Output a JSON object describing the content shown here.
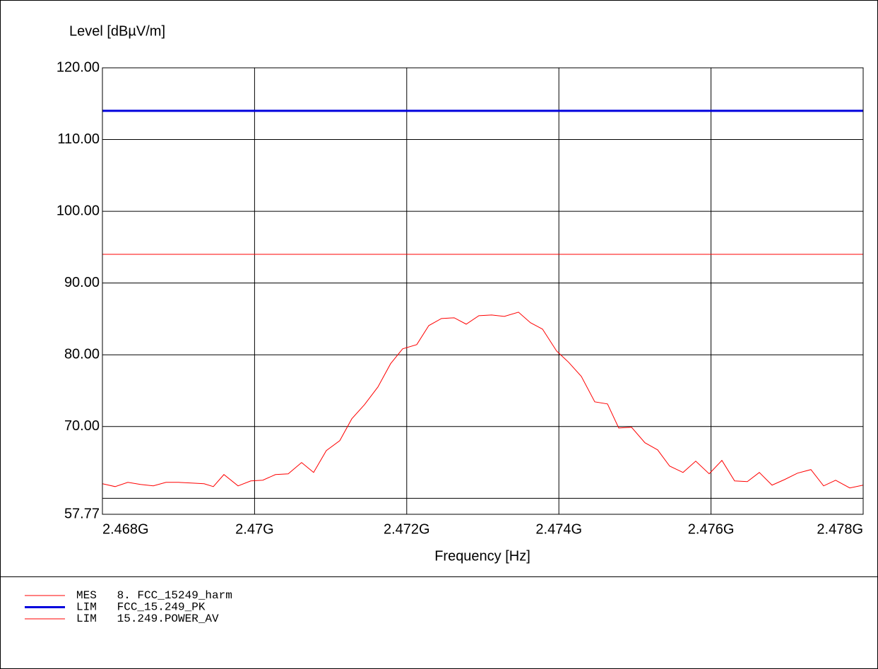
{
  "chart_data": {
    "type": "line",
    "ylabel": "Level [dBµV/m]",
    "xlabel": "Frequency [Hz]",
    "xlim": [
      2468000000,
      2478000000
    ],
    "ylim": [
      57.77,
      120
    ],
    "xticks": [
      {
        "value": 2468000000,
        "label": "2.468G"
      },
      {
        "value": 2470000000,
        "label": "2.47G"
      },
      {
        "value": 2472000000,
        "label": "2.472G"
      },
      {
        "value": 2474000000,
        "label": "2.474G"
      },
      {
        "value": 2476000000,
        "label": "2.476G"
      },
      {
        "value": 2478000000,
        "label": "2.478G"
      }
    ],
    "yticks": [
      {
        "value": 57.77,
        "label": "57.77"
      },
      {
        "value": 70,
        "label": "70.00"
      },
      {
        "value": 80,
        "label": "80.00"
      },
      {
        "value": 90,
        "label": "90.00"
      },
      {
        "value": 100,
        "label": "100.00"
      },
      {
        "value": 110,
        "label": "110.00"
      },
      {
        "value": 120,
        "label": "120.00"
      }
    ],
    "ygrid": [
      60,
      70,
      80,
      90,
      100,
      110,
      120
    ],
    "grid": true,
    "series": [
      {
        "name": "MES   8. FCC_15249_harm",
        "color": "#ff0000",
        "width": 1,
        "x": [
          2468000000,
          2468167000,
          2468334000,
          2468501000,
          2468669000,
          2468836000,
          2469003000,
          2469170000,
          2469337000,
          2469458000,
          2469597000,
          2469783000,
          2469950000,
          2470108000,
          2470275000,
          2470442000,
          2470618000,
          2470776000,
          2470943000,
          2471120000,
          2471278000,
          2471445000,
          2471621000,
          2471788000,
          2471946000,
          2472132000,
          2472290000,
          2472457000,
          2472624000,
          2472782000,
          2472949000,
          2473116000,
          2473283000,
          2473469000,
          2473627000,
          2473785000,
          2473970000,
          2474128000,
          2474295000,
          2474472000,
          2474639000,
          2474787000,
          2474955000,
          2475131000,
          2475298000,
          2475456000,
          2475632000,
          2475799000,
          2475976000,
          2476143000,
          2476310000,
          2476477000,
          2476635000,
          2476802000,
          2476969000,
          2477136000,
          2477313000,
          2477480000,
          2477638000,
          2477824000,
          2478000000
        ],
        "values": [
          62.03,
          61.63,
          62.22,
          61.93,
          61.73,
          62.22,
          62.22,
          62.13,
          62.03,
          61.63,
          63.31,
          61.73,
          62.42,
          62.52,
          63.31,
          63.41,
          64.98,
          63.6,
          66.65,
          68.03,
          71.08,
          73.05,
          75.51,
          78.76,
          80.83,
          81.42,
          84.07,
          85.06,
          85.16,
          84.27,
          85.45,
          85.55,
          85.35,
          85.94,
          84.47,
          83.58,
          80.53,
          78.96,
          76.99,
          73.44,
          73.15,
          69.8,
          69.9,
          67.74,
          66.75,
          64.49,
          63.6,
          65.18,
          63.41,
          65.28,
          62.42,
          62.32,
          63.6,
          61.83,
          62.62,
          63.5,
          64.0,
          61.73,
          62.52,
          61.44,
          61.83
        ]
      },
      {
        "name": "LIM   FCC_15.249_PK",
        "color": "#0000dd",
        "width": 3,
        "x": [
          2468000000,
          2478000000
        ],
        "values": [
          114,
          114
        ]
      },
      {
        "name": "LIM   15.249.POWER_AV",
        "color": "#ff0000",
        "width": 1,
        "x": [
          2468000000,
          2478000000
        ],
        "values": [
          94,
          94
        ]
      }
    ]
  }
}
